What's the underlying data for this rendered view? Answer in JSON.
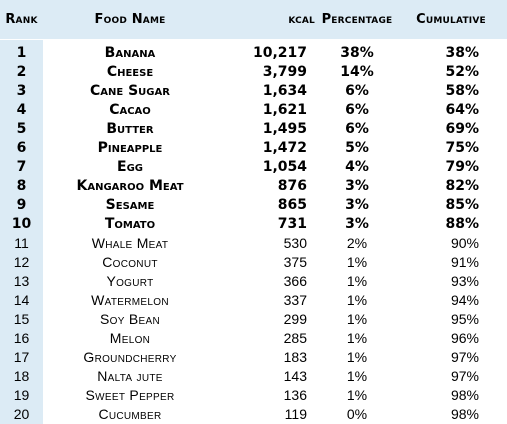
{
  "headers": {
    "rank": "Rank",
    "food_name": "Food Name",
    "kcal": "kcal",
    "percentage": "Percentage",
    "cumulative": "Cumulative"
  },
  "rows": [
    {
      "rank": "1",
      "name": "Banana",
      "kcal": "10,217",
      "pct": "38%",
      "cum": "38%"
    },
    {
      "rank": "2",
      "name": "Cheese",
      "kcal": "3,799",
      "pct": "14%",
      "cum": "52%"
    },
    {
      "rank": "3",
      "name": "Cane Sugar",
      "kcal": "1,634",
      "pct": "6%",
      "cum": "58%"
    },
    {
      "rank": "4",
      "name": "Cacao",
      "kcal": "1,621",
      "pct": "6%",
      "cum": "64%"
    },
    {
      "rank": "5",
      "name": "Butter",
      "kcal": "1,495",
      "pct": "6%",
      "cum": "69%"
    },
    {
      "rank": "6",
      "name": "Pineapple",
      "kcal": "1,472",
      "pct": "5%",
      "cum": "75%"
    },
    {
      "rank": "7",
      "name": "Egg",
      "kcal": "1,054",
      "pct": "4%",
      "cum": "79%"
    },
    {
      "rank": "8",
      "name": "Kangaroo Meat",
      "kcal": "876",
      "pct": "3%",
      "cum": "82%"
    },
    {
      "rank": "9",
      "name": "Sesame",
      "kcal": "865",
      "pct": "3%",
      "cum": "85%"
    },
    {
      "rank": "10",
      "name": "Tomato",
      "kcal": "731",
      "pct": "3%",
      "cum": "88%"
    },
    {
      "rank": "11",
      "name": "Whale Meat",
      "kcal": "530",
      "pct": "2%",
      "cum": "90%"
    },
    {
      "rank": "12",
      "name": "Coconut",
      "kcal": "375",
      "pct": "1%",
      "cum": "91%"
    },
    {
      "rank": "13",
      "name": "Yogurt",
      "kcal": "366",
      "pct": "1%",
      "cum": "93%"
    },
    {
      "rank": "14",
      "name": "Watermelon",
      "kcal": "337",
      "pct": "1%",
      "cum": "94%"
    },
    {
      "rank": "15",
      "name": "Soy Bean",
      "kcal": "299",
      "pct": "1%",
      "cum": "95%"
    },
    {
      "rank": "16",
      "name": "Melon",
      "kcal": "285",
      "pct": "1%",
      "cum": "96%"
    },
    {
      "rank": "17",
      "name": "Groundcherry",
      "kcal": "183",
      "pct": "1%",
      "cum": "97%"
    },
    {
      "rank": "18",
      "name": "Nalta jute",
      "kcal": "143",
      "pct": "1%",
      "cum": "97%"
    },
    {
      "rank": "19",
      "name": "Sweet Pepper",
      "kcal": "136",
      "pct": "1%",
      "cum": "98%"
    },
    {
      "rank": "20",
      "name": "Cucumber",
      "kcal": "119",
      "pct": "0%",
      "cum": "98%"
    }
  ],
  "colors": {
    "header_bg": "#dcebf5",
    "rank_bg": "#dcebf5",
    "cell_bg": "#ffffff"
  }
}
